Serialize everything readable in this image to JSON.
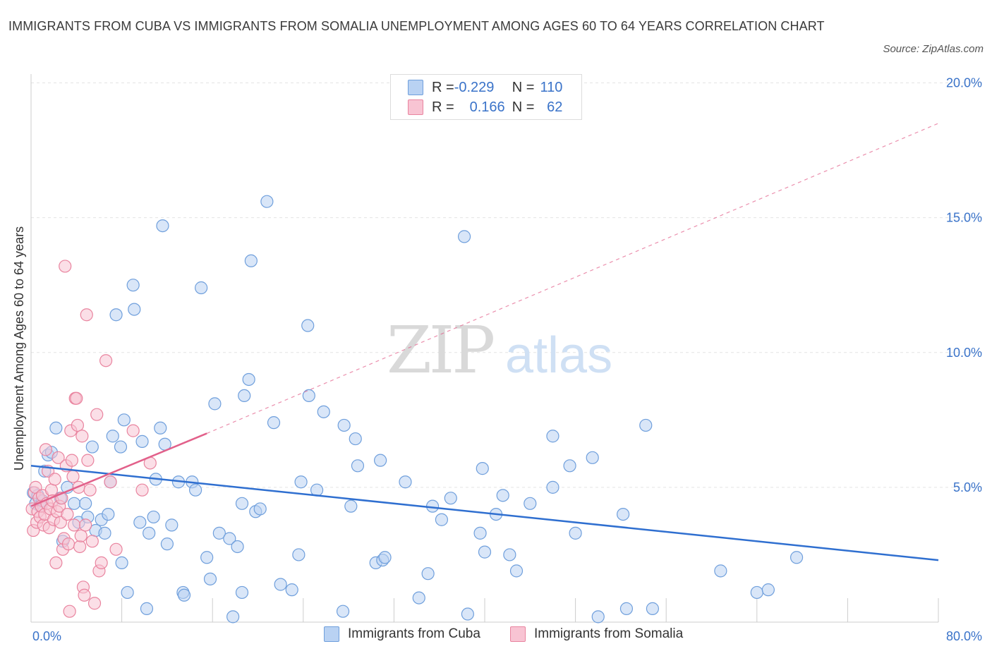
{
  "title": "IMMIGRANTS FROM CUBA VS IMMIGRANTS FROM SOMALIA UNEMPLOYMENT AMONG AGES 60 TO 64 YEARS CORRELATION CHART",
  "source": "Source: ZipAtlas.com",
  "watermark": {
    "zip": "ZIP",
    "atlas": "atlas"
  },
  "colors": {
    "cuba_fill": "#b9d2f3",
    "cuba_stroke": "#6f9fdc",
    "cuba_line": "#2f6fd0",
    "somalia_fill": "#f8c4d3",
    "somalia_stroke": "#e9849f",
    "somalia_line": "#e2608a",
    "axis_text": "#3a73c9",
    "grid": "#e3e3e3"
  },
  "legend": {
    "rows": [
      {
        "r_label": "R = ",
        "r_value": "-0.229",
        "n_label": "N = ",
        "n_value": "110"
      },
      {
        "r_label": "R = ",
        "r_value": "0.166",
        "n_label": "N = ",
        "n_value": "62"
      }
    ]
  },
  "chart_data": {
    "type": "scatter",
    "title": "IMMIGRANTS FROM CUBA VS IMMIGRANTS FROM SOMALIA UNEMPLOYMENT AMONG AGES 60 TO 64 YEARS CORRELATION CHART",
    "xlabel": "",
    "ylabel": "Unemployment Among Ages 60 to 64 years",
    "xlim": [
      0,
      80
    ],
    "ylim": [
      0,
      20
    ],
    "x_tick_labels": [
      {
        "value": 0,
        "label": "0.0%"
      },
      {
        "value": 80,
        "label": "80.0%"
      }
    ],
    "y_tick_labels": [
      {
        "value": 5,
        "label": "5.0%"
      },
      {
        "value": 10,
        "label": "10.0%"
      },
      {
        "value": 15,
        "label": "15.0%"
      },
      {
        "value": 20,
        "label": "20.0%"
      }
    ],
    "series": [
      {
        "name": "Immigrants from Cuba",
        "r": -0.229,
        "n": 110,
        "trend": {
          "x": [
            0,
            80
          ],
          "y": [
            5.8,
            2.3
          ],
          "style": "solid"
        },
        "points": [
          [
            0.2,
            4.8
          ],
          [
            0.4,
            4.4
          ],
          [
            0.6,
            4.7
          ],
          [
            0.8,
            4.3
          ],
          [
            1.0,
            4.5
          ],
          [
            1.2,
            5.6
          ],
          [
            1.5,
            6.2
          ],
          [
            1.8,
            6.3
          ],
          [
            2.2,
            7.2
          ],
          [
            2.6,
            4.6
          ],
          [
            2.8,
            3.0
          ],
          [
            3.2,
            5.0
          ],
          [
            3.8,
            4.4
          ],
          [
            4.2,
            3.7
          ],
          [
            4.8,
            4.4
          ],
          [
            5.0,
            3.9
          ],
          [
            5.4,
            6.5
          ],
          [
            5.7,
            3.4
          ],
          [
            6.2,
            3.8
          ],
          [
            6.5,
            3.3
          ],
          [
            6.8,
            4.0
          ],
          [
            7.0,
            5.2
          ],
          [
            7.2,
            6.9
          ],
          [
            7.5,
            11.4
          ],
          [
            7.9,
            6.5
          ],
          [
            8.0,
            2.2
          ],
          [
            8.2,
            7.5
          ],
          [
            8.5,
            1.1
          ],
          [
            9.0,
            12.5
          ],
          [
            9.1,
            11.6
          ],
          [
            9.6,
            3.7
          ],
          [
            9.8,
            6.7
          ],
          [
            10.2,
            0.5
          ],
          [
            10.4,
            3.3
          ],
          [
            10.8,
            3.9
          ],
          [
            11.0,
            5.3
          ],
          [
            11.4,
            7.2
          ],
          [
            11.6,
            14.7
          ],
          [
            11.8,
            6.6
          ],
          [
            12.0,
            2.9
          ],
          [
            12.4,
            3.6
          ],
          [
            13.0,
            5.2
          ],
          [
            13.4,
            1.1
          ],
          [
            13.5,
            1.0
          ],
          [
            14.2,
            5.2
          ],
          [
            14.5,
            4.9
          ],
          [
            15.0,
            12.4
          ],
          [
            15.5,
            2.4
          ],
          [
            15.8,
            1.6
          ],
          [
            16.2,
            8.1
          ],
          [
            16.6,
            3.3
          ],
          [
            17.5,
            3.1
          ],
          [
            17.8,
            0.2
          ],
          [
            18.2,
            2.8
          ],
          [
            18.6,
            1.1
          ],
          [
            18.6,
            4.4
          ],
          [
            18.8,
            8.4
          ],
          [
            19.2,
            9.0
          ],
          [
            19.4,
            13.4
          ],
          [
            19.8,
            4.1
          ],
          [
            20.2,
            4.2
          ],
          [
            20.8,
            15.6
          ],
          [
            21.4,
            7.4
          ],
          [
            22.0,
            1.4
          ],
          [
            23.0,
            1.2
          ],
          [
            23.6,
            2.5
          ],
          [
            23.8,
            5.2
          ],
          [
            24.4,
            11.0
          ],
          [
            24.5,
            8.4
          ],
          [
            25.2,
            4.9
          ],
          [
            25.8,
            7.8
          ],
          [
            27.5,
            0.4
          ],
          [
            27.6,
            7.3
          ],
          [
            28.2,
            4.3
          ],
          [
            28.6,
            6.8
          ],
          [
            28.8,
            5.8
          ],
          [
            30.4,
            2.2
          ],
          [
            30.8,
            6.0
          ],
          [
            31.0,
            2.3
          ],
          [
            31.2,
            2.4
          ],
          [
            33.0,
            5.2
          ],
          [
            34.2,
            0.9
          ],
          [
            35.0,
            1.8
          ],
          [
            35.4,
            4.3
          ],
          [
            36.2,
            3.8
          ],
          [
            37.0,
            4.6
          ],
          [
            38.2,
            14.3
          ],
          [
            38.5,
            0.3
          ],
          [
            39.6,
            3.3
          ],
          [
            39.8,
            5.7
          ],
          [
            40.0,
            2.6
          ],
          [
            41.0,
            4.0
          ],
          [
            41.6,
            4.7
          ],
          [
            42.2,
            2.5
          ],
          [
            42.8,
            1.9
          ],
          [
            44.0,
            4.4
          ],
          [
            46.0,
            6.9
          ],
          [
            47.5,
            5.8
          ],
          [
            48.0,
            3.3
          ],
          [
            49.5,
            6.1
          ],
          [
            50.0,
            0.2
          ],
          [
            52.2,
            4.0
          ],
          [
            52.5,
            0.5
          ],
          [
            54.2,
            7.3
          ],
          [
            54.8,
            0.5
          ],
          [
            60.8,
            1.9
          ],
          [
            64.0,
            1.1
          ],
          [
            65.0,
            1.2
          ],
          [
            67.5,
            2.4
          ],
          [
            46.0,
            5.0
          ]
        ]
      },
      {
        "name": "Immigrants from Somalia",
        "r": 0.166,
        "n": 62,
        "trend": {
          "x": [
            0,
            15.5
          ],
          "y": [
            4.3,
            7.0
          ],
          "style": "solid",
          "extended_x": [
            80
          ],
          "extended_y": [
            18.5
          ],
          "extended_style": "dashed"
        },
        "points": [
          [
            0.1,
            4.2
          ],
          [
            0.2,
            3.4
          ],
          [
            0.3,
            4.8
          ],
          [
            0.4,
            5.0
          ],
          [
            0.5,
            3.7
          ],
          [
            0.6,
            4.1
          ],
          [
            0.7,
            4.6
          ],
          [
            0.8,
            3.9
          ],
          [
            0.9,
            4.3
          ],
          [
            1.0,
            4.7
          ],
          [
            1.1,
            3.6
          ],
          [
            1.2,
            4.0
          ],
          [
            1.3,
            6.4
          ],
          [
            1.4,
            4.4
          ],
          [
            1.5,
            5.6
          ],
          [
            1.6,
            3.5
          ],
          [
            1.7,
            4.2
          ],
          [
            1.8,
            4.9
          ],
          [
            1.9,
            4.5
          ],
          [
            2.0,
            3.8
          ],
          [
            2.1,
            5.3
          ],
          [
            2.2,
            2.2
          ],
          [
            2.3,
            4.1
          ],
          [
            2.4,
            6.1
          ],
          [
            2.5,
            4.3
          ],
          [
            2.6,
            3.7
          ],
          [
            2.7,
            4.6
          ],
          [
            2.8,
            2.7
          ],
          [
            2.9,
            3.1
          ],
          [
            3.0,
            13.2
          ],
          [
            3.1,
            5.8
          ],
          [
            3.2,
            4.0
          ],
          [
            3.3,
            2.9
          ],
          [
            3.4,
            0.4
          ],
          [
            3.5,
            7.1
          ],
          [
            3.6,
            6.0
          ],
          [
            3.7,
            5.4
          ],
          [
            3.8,
            3.6
          ],
          [
            3.9,
            8.3
          ],
          [
            4.0,
            8.3
          ],
          [
            4.1,
            7.3
          ],
          [
            4.2,
            5.0
          ],
          [
            4.3,
            2.8
          ],
          [
            4.4,
            3.2
          ],
          [
            4.5,
            6.9
          ],
          [
            4.6,
            1.3
          ],
          [
            4.7,
            1.0
          ],
          [
            4.8,
            3.6
          ],
          [
            4.9,
            11.4
          ],
          [
            5.0,
            6.0
          ],
          [
            5.2,
            4.9
          ],
          [
            5.4,
            3.0
          ],
          [
            5.6,
            0.7
          ],
          [
            5.8,
            7.7
          ],
          [
            6.0,
            1.9
          ],
          [
            6.2,
            2.2
          ],
          [
            6.6,
            9.7
          ],
          [
            7.0,
            5.2
          ],
          [
            7.5,
            2.7
          ],
          [
            9.0,
            7.1
          ],
          [
            9.8,
            4.9
          ],
          [
            10.5,
            5.9
          ]
        ]
      }
    ]
  },
  "bottom_legend": {
    "cuba_label": "Immigrants from Cuba",
    "somalia_label": "Immigrants from Somalia"
  }
}
